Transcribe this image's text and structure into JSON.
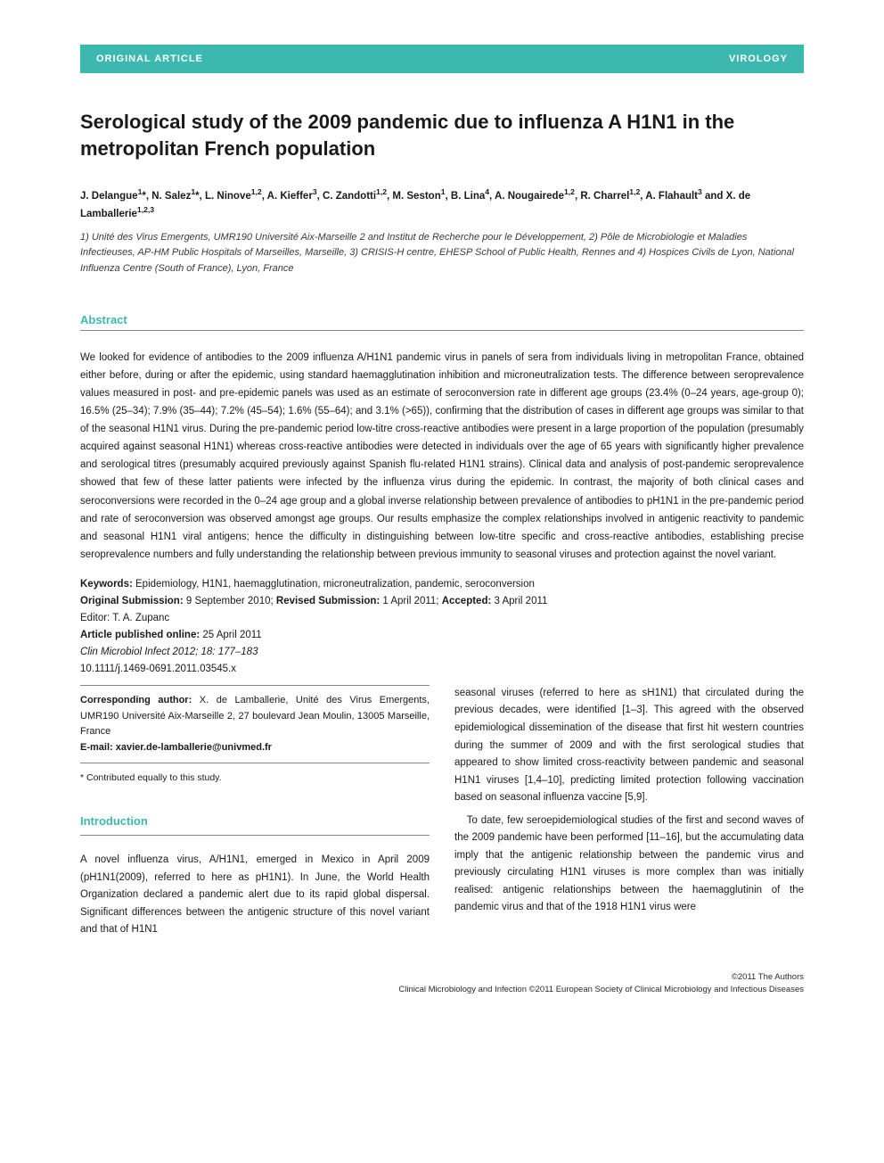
{
  "banner": {
    "left": "ORIGINAL ARTICLE",
    "right": "VIROLOGY",
    "bg_color": "#3db8b1",
    "text_color": "#ffffff"
  },
  "title": "Serological study of the 2009 pandemic due to influenza A H1N1 in the metropolitan French population",
  "authors_html": "J. Delangue<sup>1</sup>*, N. Salez<sup>1</sup>*, L. Ninove<sup>1,2</sup>, A. Kieffer<sup>3</sup>, C. Zandotti<sup>1,2</sup>, M. Seston<sup>1</sup>, B. Lina<sup>4</sup>, A. Nougairede<sup>1,2</sup>, R. Charrel<sup>1,2</sup>, A. Flahault<sup>3</sup> and X. de Lamballerie<sup>1,2,3</sup>",
  "affiliations": "1) Unité des Virus Emergents, UMR190 Université Aix-Marseille 2 and Institut de Recherche pour le Développement, 2) Pôle de Microbiologie et Maladies Infectieuses, AP-HM Public Hospitals of Marseilles, Marseille, 3) CRISIS-H centre, EHESP School of Public Health, Rennes and 4) Hospices Civils de Lyon, National Influenza Centre (South of France), Lyon, France",
  "abstract": {
    "heading": "Abstract",
    "body": "We looked for evidence of antibodies to the 2009 influenza A/H1N1 pandemic virus in panels of sera from individuals living in metropolitan France, obtained either before, during or after the epidemic, using standard haemagglutination inhibition and microneutralization tests. The difference between seroprevalence values measured in post- and pre-epidemic panels was used as an estimate of seroconversion rate in different age groups (23.4% (0–24 years, age-group 0); 16.5% (25–34); 7.9% (35–44); 7.2% (45–54); 1.6% (55–64); and 3.1% (>65)), confirming that the distribution of cases in different age groups was similar to that of the seasonal H1N1 virus. During the pre-pandemic period low-titre cross-reactive antibodies were present in a large proportion of the population (presumably acquired against seasonal H1N1) whereas cross-reactive antibodies were detected in individuals over the age of 65 years with significantly higher prevalence and serological titres (presumably acquired previously against Spanish flu-related H1N1 strains). Clinical data and analysis of post-pandemic seroprevalence showed that few of these latter patients were infected by the influenza virus during the epidemic. In contrast, the majority of both clinical cases and seroconversions were recorded in the 0–24 age group and a global inverse relationship between prevalence of antibodies to pH1N1 in the pre-pandemic period and rate of seroconversion was observed amongst age groups. Our results emphasize the complex relationships involved in antigenic reactivity to pandemic and seasonal H1N1 viral antigens; hence the difficulty in distinguishing between low-titre specific and cross-reactive antibodies, establishing precise seroprevalence numbers and fully understanding the relationship between previous immunity to seasonal viruses and protection against the novel variant."
  },
  "keywords_label": "Keywords:",
  "keywords": "Epidemiology, H1N1, haemagglutination, microneutralization, pandemic, seroconversion",
  "submission": {
    "orig_label": "Original Submission:",
    "orig_date": "9 September 2010;",
    "rev_label": "Revised Submission:",
    "rev_date": "1 April 2011;",
    "acc_label": "Accepted:",
    "acc_date": "3 April 2011"
  },
  "editor_label": "Editor:",
  "editor": "T. A. Zupanc",
  "pub_online_label": "Article published online:",
  "pub_online_date": "25 April 2011",
  "citation": "Clin Microbiol Infect 2012; 18: 177–183",
  "doi": "10.1111/j.1469-0691.2011.03545.x",
  "corresponding": {
    "label": "Corresponding author:",
    "text": "X. de Lamballerie, Unité des Virus Emergents, UMR190 Université Aix-Marseille 2, 27 boulevard Jean Moulin, 13005 Marseille, France",
    "email_label": "E-mail:",
    "email": "xavier.de-lamballerie@univmed.fr"
  },
  "contrib_note": "* Contributed equally to this study.",
  "introduction": {
    "heading": "Introduction",
    "col1": "A novel influenza virus, A/H1N1, emerged in Mexico in April 2009 (pH1N1(2009), referred to here as pH1N1). In June, the World Health Organization declared a pandemic alert due to its rapid global dispersal. Significant differences between the antigenic structure of this novel variant and that of H1N1",
    "col2_p1": "seasonal viruses (referred to here as sH1N1) that circulated during the previous decades, were identified [1–3]. This agreed with the observed epidemiological dissemination of the disease that first hit western countries during the summer of 2009 and with the first serological studies that appeared to show limited cross-reactivity between pandemic and seasonal H1N1 viruses [1,4–10], predicting limited protection following vaccination based on seasonal influenza vaccine [5,9].",
    "col2_p2": "To date, few seroepidemiological studies of the first and second waves of the 2009 pandemic have been performed [11–16], but the accumulating data imply that the antigenic relationship between the pandemic virus and previously circulating H1N1 viruses is more complex than was initially realised: antigenic relationships between the haemagglutinin of the pandemic virus and that of the 1918 H1N1 virus were"
  },
  "footer": {
    "line1": "©2011 The Authors",
    "line2": "Clinical Microbiology and Infection ©2011 European Society of Clinical Microbiology and Infectious Diseases"
  },
  "colors": {
    "accent": "#3db8b1",
    "text": "#1a1a1a",
    "rule": "#888888",
    "background": "#ffffff"
  },
  "typography": {
    "title_fontsize": 22,
    "body_fontsize": 11.5,
    "heading_fontsize": 13,
    "footer_fontsize": 9.5
  }
}
